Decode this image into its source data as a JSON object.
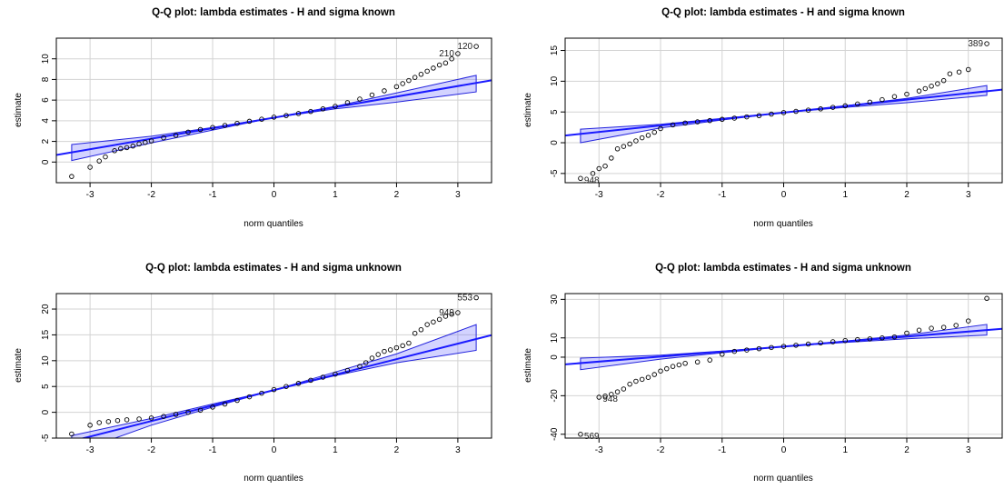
{
  "chart_data": [
    {
      "type": "scatter",
      "title": "Q-Q plot: lambda estimates - H and sigma known",
      "xlabel": "norm quantiles",
      "ylabel": "estimate",
      "xlim": [
        -3.55,
        3.55
      ],
      "ylim": [
        -2.0,
        12.0
      ],
      "xticks": [
        -3,
        -2,
        -1,
        0,
        1,
        2,
        3
      ],
      "yticks": [
        0,
        2,
        4,
        6,
        8,
        10
      ],
      "grid": true,
      "line": {
        "intercept": 4.3,
        "slope": 1.02
      },
      "band": {
        "upper": [
          [
            -3.3,
            1.7
          ],
          [
            -2.0,
            2.5
          ],
          [
            -1.0,
            3.35
          ],
          [
            0,
            4.3
          ],
          [
            1.0,
            5.4
          ],
          [
            2.0,
            6.7
          ],
          [
            3.3,
            8.4
          ]
        ],
        "lower": [
          [
            -3.3,
            0.15
          ],
          [
            -2.0,
            1.85
          ],
          [
            -1.0,
            3.1
          ],
          [
            0,
            4.3
          ],
          [
            1.0,
            5.15
          ],
          [
            2.0,
            5.8
          ],
          [
            3.3,
            6.8
          ]
        ]
      },
      "points": [
        [
          -3.3,
          -1.4
        ],
        [
          -3.0,
          -0.5
        ],
        [
          -2.85,
          0.1
        ],
        [
          -2.75,
          0.5
        ],
        [
          -2.6,
          1.1
        ],
        [
          -2.5,
          1.3
        ],
        [
          -2.4,
          1.4
        ],
        [
          -2.3,
          1.55
        ],
        [
          -2.2,
          1.75
        ],
        [
          -2.1,
          1.9
        ],
        [
          -2.0,
          2.05
        ],
        [
          -1.8,
          2.35
        ],
        [
          -1.6,
          2.6
        ],
        [
          -1.4,
          2.9
        ],
        [
          -1.2,
          3.15
        ],
        [
          -1.0,
          3.35
        ],
        [
          -0.8,
          3.55
        ],
        [
          -0.6,
          3.75
        ],
        [
          -0.4,
          3.95
        ],
        [
          -0.2,
          4.15
        ],
        [
          0.0,
          4.35
        ],
        [
          0.2,
          4.5
        ],
        [
          0.4,
          4.7
        ],
        [
          0.6,
          4.9
        ],
        [
          0.8,
          5.15
        ],
        [
          1.0,
          5.4
        ],
        [
          1.2,
          5.75
        ],
        [
          1.4,
          6.1
        ],
        [
          1.6,
          6.5
        ],
        [
          1.8,
          6.9
        ],
        [
          2.0,
          7.3
        ],
        [
          2.1,
          7.6
        ],
        [
          2.2,
          7.9
        ],
        [
          2.3,
          8.2
        ],
        [
          2.4,
          8.5
        ],
        [
          2.5,
          8.8
        ],
        [
          2.6,
          9.1
        ],
        [
          2.7,
          9.4
        ],
        [
          2.8,
          9.6
        ],
        [
          2.9,
          10.0
        ],
        [
          3.0,
          10.5
        ],
        [
          3.3,
          11.2
        ]
      ],
      "labels": [
        {
          "x": 3.0,
          "y": 10.5,
          "text": "210"
        },
        {
          "x": 3.3,
          "y": 11.2,
          "text": "120"
        }
      ]
    },
    {
      "type": "scatter",
      "title": "Q-Q plot: lambda estimates - H and sigma known",
      "xlabel": "norm quantiles",
      "ylabel": "estimate",
      "xlim": [
        -3.55,
        3.55
      ],
      "ylim": [
        -6.5,
        17.0
      ],
      "xticks": [
        -3,
        -2,
        -1,
        0,
        1,
        2,
        3
      ],
      "yticks": [
        -5,
        0,
        5,
        10,
        15
      ],
      "grid": true,
      "line": {
        "intercept": 4.9,
        "slope": 1.05
      },
      "band": {
        "upper": [
          [
            -3.3,
            2.2
          ],
          [
            -2.0,
            3.0
          ],
          [
            -1.0,
            3.95
          ],
          [
            0,
            4.9
          ],
          [
            1.0,
            6.0
          ],
          [
            2.0,
            7.2
          ],
          [
            3.3,
            9.3
          ]
        ],
        "lower": [
          [
            -3.3,
            0.0
          ],
          [
            -2.0,
            2.4
          ],
          [
            -1.0,
            3.7
          ],
          [
            0,
            4.9
          ],
          [
            1.0,
            5.75
          ],
          [
            2.0,
            6.5
          ],
          [
            3.3,
            7.7
          ]
        ]
      },
      "points": [
        [
          -3.3,
          -5.8
        ],
        [
          -3.1,
          -5.0
        ],
        [
          -3.0,
          -4.2
        ],
        [
          -2.9,
          -3.8
        ],
        [
          -2.8,
          -2.5
        ],
        [
          -2.7,
          -1.0
        ],
        [
          -2.6,
          -0.6
        ],
        [
          -2.5,
          -0.2
        ],
        [
          -2.4,
          0.3
        ],
        [
          -2.3,
          0.8
        ],
        [
          -2.2,
          1.2
        ],
        [
          -2.1,
          1.7
        ],
        [
          -2.0,
          2.3
        ],
        [
          -1.8,
          2.9
        ],
        [
          -1.6,
          3.2
        ],
        [
          -1.4,
          3.4
        ],
        [
          -1.2,
          3.6
        ],
        [
          -1.0,
          3.8
        ],
        [
          -0.8,
          4.0
        ],
        [
          -0.6,
          4.2
        ],
        [
          -0.4,
          4.4
        ],
        [
          -0.2,
          4.65
        ],
        [
          0.0,
          4.9
        ],
        [
          0.2,
          5.1
        ],
        [
          0.4,
          5.3
        ],
        [
          0.6,
          5.5
        ],
        [
          0.8,
          5.75
        ],
        [
          1.0,
          6.0
        ],
        [
          1.2,
          6.3
        ],
        [
          1.4,
          6.6
        ],
        [
          1.6,
          7.0
        ],
        [
          1.8,
          7.5
        ],
        [
          2.0,
          7.9
        ],
        [
          2.2,
          8.4
        ],
        [
          2.3,
          8.8
        ],
        [
          2.4,
          9.2
        ],
        [
          2.5,
          9.6
        ],
        [
          2.6,
          10.1
        ],
        [
          2.7,
          11.2
        ],
        [
          2.85,
          11.5
        ],
        [
          3.0,
          11.9
        ],
        [
          3.3,
          16.1
        ]
      ],
      "labels": [
        {
          "x": 3.3,
          "y": 16.1,
          "text": "389"
        },
        {
          "x": -3.3,
          "y": -5.8,
          "text": "948"
        }
      ]
    },
    {
      "type": "scatter",
      "title": "Q-Q plot: lambda estimates - H and sigma unknown",
      "xlabel": "norm quantiles",
      "ylabel": "estimate",
      "xlim": [
        -3.55,
        3.55
      ],
      "ylim": [
        -5.0,
        23.0
      ],
      "xticks": [
        -3,
        -2,
        -1,
        0,
        1,
        2,
        3
      ],
      "yticks": [
        -5,
        0,
        5,
        10,
        15,
        20
      ],
      "grid": true,
      "line": {
        "intercept": 4.3,
        "slope": 3.0
      },
      "band": {
        "upper": [
          [
            -3.3,
            -4.5
          ],
          [
            -2.0,
            -1.2
          ],
          [
            -1.0,
            1.6
          ],
          [
            0,
            4.3
          ],
          [
            1.0,
            7.8
          ],
          [
            2.0,
            11.3
          ],
          [
            3.3,
            17.0
          ]
        ],
        "lower": [
          [
            -3.3,
            -8.0
          ],
          [
            -2.0,
            -2.5
          ],
          [
            -1.0,
            1.0
          ],
          [
            0,
            4.3
          ],
          [
            1.0,
            7.1
          ],
          [
            2.0,
            9.6
          ],
          [
            3.3,
            12.0
          ]
        ]
      },
      "points": [
        [
          -3.3,
          -4.2
        ],
        [
          -3.0,
          -2.5
        ],
        [
          -2.85,
          -2.0
        ],
        [
          -2.7,
          -1.8
        ],
        [
          -2.55,
          -1.6
        ],
        [
          -2.4,
          -1.45
        ],
        [
          -2.2,
          -1.3
        ],
        [
          -2.0,
          -1.1
        ],
        [
          -1.8,
          -0.8
        ],
        [
          -1.6,
          -0.4
        ],
        [
          -1.4,
          0.0
        ],
        [
          -1.2,
          0.4
        ],
        [
          -1.0,
          1.0
        ],
        [
          -0.8,
          1.6
        ],
        [
          -0.6,
          2.3
        ],
        [
          -0.4,
          3.0
        ],
        [
          -0.2,
          3.7
        ],
        [
          0.0,
          4.4
        ],
        [
          0.2,
          5.0
        ],
        [
          0.4,
          5.6
        ],
        [
          0.6,
          6.2
        ],
        [
          0.8,
          6.8
        ],
        [
          1.0,
          7.4
        ],
        [
          1.2,
          8.1
        ],
        [
          1.4,
          8.9
        ],
        [
          1.5,
          9.6
        ],
        [
          1.6,
          10.5
        ],
        [
          1.7,
          11.2
        ],
        [
          1.8,
          11.8
        ],
        [
          1.9,
          12.1
        ],
        [
          2.0,
          12.5
        ],
        [
          2.1,
          12.9
        ],
        [
          2.2,
          13.4
        ],
        [
          2.3,
          15.3
        ],
        [
          2.4,
          16.0
        ],
        [
          2.5,
          17.0
        ],
        [
          2.6,
          17.5
        ],
        [
          2.7,
          18.0
        ],
        [
          2.8,
          18.6
        ],
        [
          2.9,
          19.0
        ],
        [
          3.0,
          19.3
        ],
        [
          3.3,
          22.2
        ]
      ],
      "labels": [
        {
          "x": 3.3,
          "y": 22.2,
          "text": "553"
        },
        {
          "x": 3.0,
          "y": 19.3,
          "text": "949"
        }
      ]
    },
    {
      "type": "scatter",
      "title": "Q-Q plot: lambda estimates - H and sigma unknown",
      "xlabel": "norm quantiles",
      "ylabel": "estimate",
      "xlim": [
        -3.55,
        3.55
      ],
      "ylim": [
        -42.0,
        33.0
      ],
      "xticks": [
        -3,
        -2,
        -1,
        0,
        1,
        2,
        3
      ],
      "yticks": [
        -40,
        -20,
        0,
        10,
        30
      ],
      "grid": true,
      "line": {
        "intercept": 5.5,
        "slope": 2.6
      },
      "band": {
        "upper": [
          [
            -3.3,
            -0.5
          ],
          [
            -2.0,
            1.0
          ],
          [
            -1.0,
            3.2
          ],
          [
            0,
            5.5
          ],
          [
            1.0,
            8.4
          ],
          [
            2.0,
            11.5
          ],
          [
            3.3,
            17.0
          ]
        ],
        "lower": [
          [
            -3.3,
            -6.5
          ],
          [
            -2.0,
            -1.0
          ],
          [
            -1.0,
            2.3
          ],
          [
            0,
            5.5
          ],
          [
            1.0,
            7.6
          ],
          [
            2.0,
            9.5
          ],
          [
            3.3,
            11.5
          ]
        ]
      },
      "points": [
        [
          -3.3,
          -40.0
        ],
        [
          -3.0,
          -20.8
        ],
        [
          -2.9,
          -20.2
        ],
        [
          -2.8,
          -19.3
        ],
        [
          -2.7,
          -18.0
        ],
        [
          -2.6,
          -16.5
        ],
        [
          -2.5,
          -14.0
        ],
        [
          -2.4,
          -12.5
        ],
        [
          -2.3,
          -11.5
        ],
        [
          -2.2,
          -10.5
        ],
        [
          -2.1,
          -9.0
        ],
        [
          -2.0,
          -7.2
        ],
        [
          -1.9,
          -6.0
        ],
        [
          -1.8,
          -4.8
        ],
        [
          -1.7,
          -4.0
        ],
        [
          -1.6,
          -3.2
        ],
        [
          -1.4,
          -2.5
        ],
        [
          -1.2,
          -1.5
        ],
        [
          -1.0,
          1.5
        ],
        [
          -0.8,
          3.0
        ],
        [
          -0.6,
          3.7
        ],
        [
          -0.4,
          4.4
        ],
        [
          -0.2,
          5.0
        ],
        [
          0.0,
          5.6
        ],
        [
          0.2,
          6.2
        ],
        [
          0.4,
          6.8
        ],
        [
          0.6,
          7.4
        ],
        [
          0.8,
          8.0
        ],
        [
          1.0,
          8.6
        ],
        [
          1.2,
          9.1
        ],
        [
          1.4,
          9.5
        ],
        [
          1.6,
          10.0
        ],
        [
          1.8,
          10.5
        ],
        [
          2.0,
          12.5
        ],
        [
          2.2,
          14.0
        ],
        [
          2.4,
          15.0
        ],
        [
          2.6,
          15.5
        ],
        [
          2.8,
          16.5
        ],
        [
          3.0,
          18.8
        ],
        [
          3.3,
          30.5
        ]
      ],
      "labels": [
        {
          "x": -3.0,
          "y": -20.8,
          "text": "948"
        },
        {
          "x": -3.3,
          "y": -40.0,
          "text": "569"
        }
      ]
    }
  ]
}
